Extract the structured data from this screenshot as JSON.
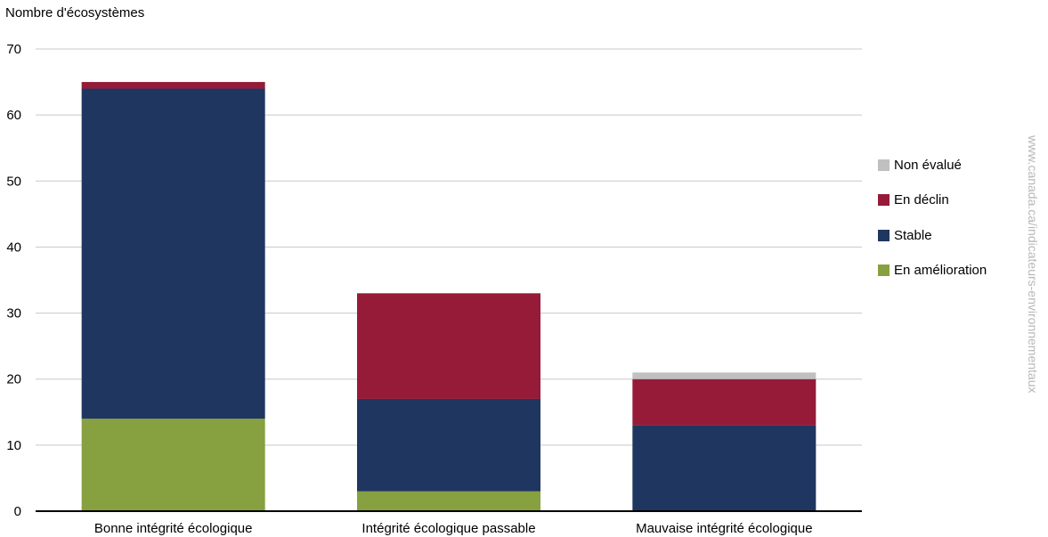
{
  "chart_data": {
    "type": "bar",
    "stacked": true,
    "title": "",
    "xlabel": "",
    "ylabel": "Nombre d'écosystèmes",
    "ylim": [
      0,
      70
    ],
    "yticks": [
      0,
      10,
      20,
      30,
      40,
      50,
      60,
      70
    ],
    "grid": true,
    "legend_position": "right",
    "categories": [
      "Bonne intégrité écologique",
      "Intégrité écologique passable",
      "Mauvaise intégrité écologique"
    ],
    "series": [
      {
        "name": "En amélioration",
        "color": "#87a040",
        "values": [
          14,
          3,
          0
        ]
      },
      {
        "name": "Stable",
        "color": "#1f3660",
        "values": [
          50,
          14,
          13
        ]
      },
      {
        "name": "En déclin",
        "color": "#961b38",
        "values": [
          1,
          16,
          7
        ]
      },
      {
        "name": "Non évalué",
        "color": "#c0c0c0",
        "values": [
          0,
          0,
          1
        ]
      }
    ],
    "legend_order": [
      "Non évalué",
      "En déclin",
      "Stable",
      "En amélioration"
    ]
  },
  "watermark": "www.canada.ca/indicateurs-environnementaux"
}
